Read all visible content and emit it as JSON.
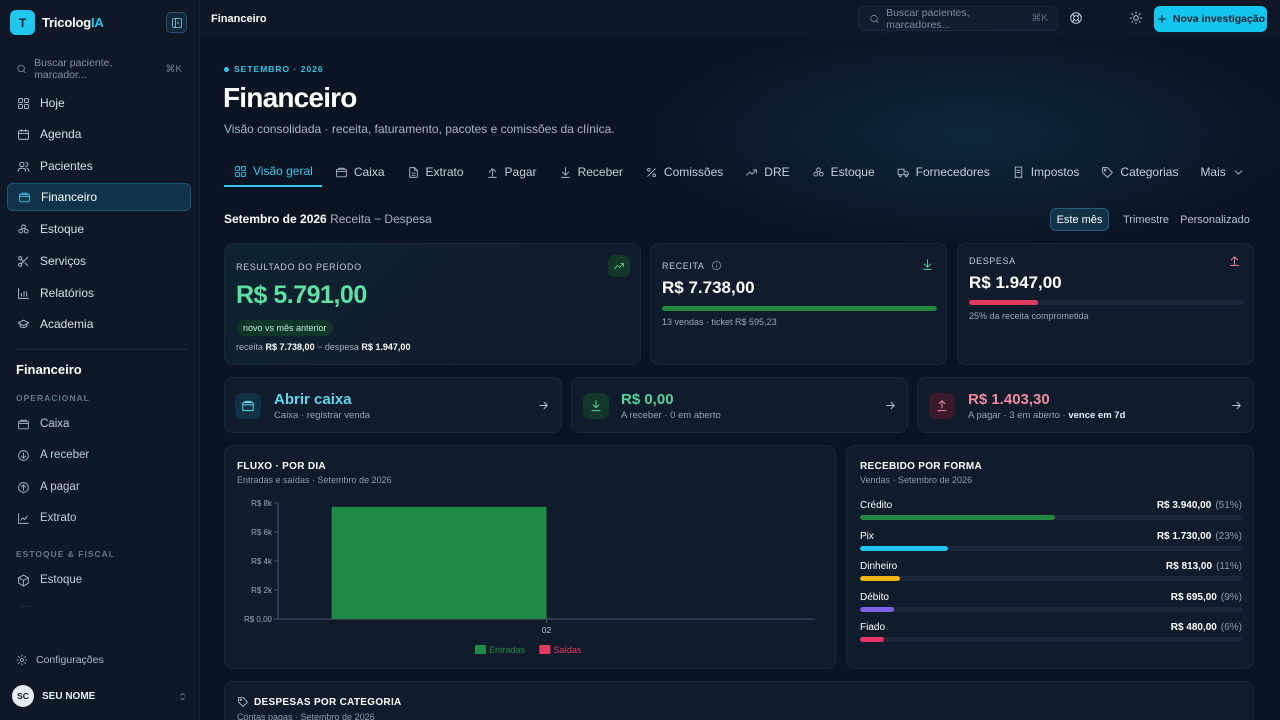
{
  "brand": {
    "name_main": "Tricolog",
    "name_accent": "IA",
    "logo_letter": "T"
  },
  "sidebar": {
    "search_placeholder": "Buscar paciente, marcador...",
    "search_shortcut": "⌘K",
    "nav": [
      {
        "label": "Hoje",
        "icon": "grid-icon"
      },
      {
        "label": "Agenda",
        "icon": "calendar-icon"
      },
      {
        "label": "Pacientes",
        "icon": "users-icon"
      },
      {
        "label": "Financeiro",
        "icon": "wallet-icon",
        "active": true
      },
      {
        "label": "Estoque",
        "icon": "boxes-icon"
      },
      {
        "label": "Serviços",
        "icon": "scissors-icon"
      },
      {
        "label": "Relatórios",
        "icon": "bar-chart-icon"
      },
      {
        "label": "Academia",
        "icon": "graduation-cap-icon"
      }
    ],
    "section_title": "Financeiro",
    "group_operacional": "OPERACIONAL",
    "operacional": [
      {
        "label": "Caixa",
        "icon": "wallet-icon"
      },
      {
        "label": "A receber",
        "icon": "arrow-down-circle-icon"
      },
      {
        "label": "A pagar",
        "icon": "arrow-up-circle-icon"
      },
      {
        "label": "Extrato",
        "icon": "line-chart-icon"
      }
    ],
    "group_estoque": "ESTOQUE & FISCAL",
    "estoque": [
      {
        "label": "Estoque",
        "icon": "package-icon"
      }
    ],
    "settings_label": "Configurações",
    "user_initials": "SC",
    "user_name": "SEU NOME"
  },
  "topbar": {
    "title": "Financeiro",
    "search_placeholder": "Buscar pacientes, marcadores...",
    "search_shortcut": "⌘K",
    "primary_button": "Nova investigação"
  },
  "header": {
    "eyebrow": "SETEMBRO · 2026",
    "title": "Financeiro",
    "subtitle": "Visão consolidada · receita, faturamento, pacotes e comissões da clínica."
  },
  "tabs": [
    {
      "label": "Visão geral",
      "icon": "grid-icon",
      "active": true
    },
    {
      "label": "Caixa",
      "icon": "wallet-icon"
    },
    {
      "label": "Extrato",
      "icon": "file-icon"
    },
    {
      "label": "Pagar",
      "icon": "arrow-up-icon"
    },
    {
      "label": "Receber",
      "icon": "arrow-down-icon"
    },
    {
      "label": "Comissões",
      "icon": "percent-icon"
    },
    {
      "label": "DRE",
      "icon": "trending-up-icon"
    },
    {
      "label": "Estoque",
      "icon": "boxes-icon"
    },
    {
      "label": "Fornecedores",
      "icon": "truck-icon"
    },
    {
      "label": "Impostos",
      "icon": "receipt-icon"
    },
    {
      "label": "Categorias",
      "icon": "tag-icon"
    },
    {
      "label": "Mais",
      "icon": "chevron-down-icon"
    }
  ],
  "period": {
    "title": "Setembro de 2026",
    "formula": "Receita − Despesa",
    "options": [
      "Este mês",
      "Trimestre",
      "Personalizado"
    ],
    "selected": "Este mês"
  },
  "kpis": {
    "resultado": {
      "label": "RESULTADO DO PERÍODO",
      "value": "R$ 5.791,00",
      "pill": "novo vs mês anterior",
      "foot_receita_label": "receita",
      "foot_receita": "R$ 7.738,00",
      "foot_sep": "− despesa",
      "foot_despesa": "R$ 1.947,00"
    },
    "receita": {
      "label": "RECEITA",
      "value": "R$ 7.738,00",
      "bar_fraction": 1.0,
      "foot": "13 vendas · ticket R$ 595,23"
    },
    "despesa": {
      "label": "DESPESA",
      "value": "R$ 1.947,00",
      "bar_fraction": 0.25,
      "foot": "25% da receita comprometida"
    }
  },
  "actions": [
    {
      "title": "Abrir caixa",
      "sub": "Caixa · registrar venda",
      "icon": "wallet-icon",
      "color": "#5fd6ee"
    },
    {
      "title": "R$ 0,00",
      "sub": "A receber · 0 em aberto",
      "icon": "download-icon",
      "color": "#52d49a"
    },
    {
      "title": "R$ 1.403,30",
      "sub_prefix": "A pagar · 3 em aberto · ",
      "sub_strong": "vence em 7d",
      "icon": "upload-icon",
      "color": "#f08aa1"
    }
  ],
  "fluxo": {
    "title": "FLUXO · POR DIA",
    "subtitle": "Entradas e saídas · Setembro de 2026"
  },
  "chart_data": {
    "type": "bar",
    "categories": [
      "02"
    ],
    "series": [
      {
        "name": "Entradas",
        "values": [
          7738
        ],
        "color": "#1f8a45"
      },
      {
        "name": "Saídas",
        "values": [
          0
        ],
        "color": "#e23b60"
      }
    ],
    "y_ticks": [
      "R$ 0,00",
      "R$ 2k",
      "R$ 4k",
      "R$ 6k",
      "R$ 8k"
    ],
    "ylim": [
      0,
      8000
    ],
    "legend_position": "bottom-center"
  },
  "recebido": {
    "title": "RECEBIDO POR FORMA",
    "subtitle": "Vendas · Setembro de 2026",
    "rows": [
      {
        "name": "Crédito",
        "amount": "R$ 3.940,00",
        "pct": "(51%)",
        "fraction": 0.51,
        "color": "#23883f"
      },
      {
        "name": "Pix",
        "amount": "R$ 1.730,00",
        "pct": "(23%)",
        "fraction": 0.23,
        "color": "#1cc6ee"
      },
      {
        "name": "Dinheiro",
        "amount": "R$ 813,00",
        "pct": "(11%)",
        "fraction": 0.105,
        "color": "#f1b50f"
      },
      {
        "name": "Débito",
        "amount": "R$ 695,00",
        "pct": "(9%)",
        "fraction": 0.09,
        "color": "#7a61e8"
      },
      {
        "name": "Fiado",
        "amount": "R$ 480,00",
        "pct": "(6%)",
        "fraction": 0.062,
        "color": "#e8336a"
      }
    ]
  },
  "despesas": {
    "title": "DESPESAS POR CATEGORIA",
    "subtitle": "Contas pagas · Setembro de 2026"
  },
  "colors": {
    "accent": "#1fc7ee",
    "positive": "#5fe0a3",
    "negative": "#e23b60"
  }
}
